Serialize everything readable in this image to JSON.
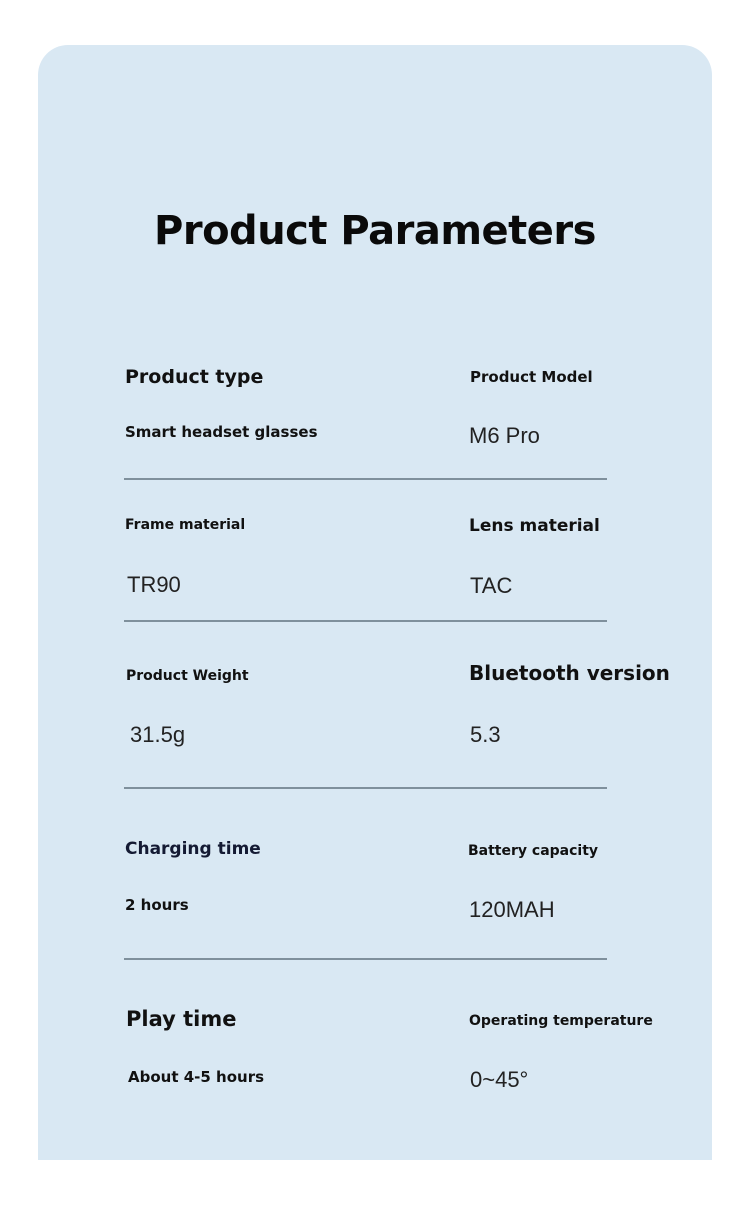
{
  "title": "Product Parameters",
  "params": [
    {
      "label": "Product type",
      "value": "Smart headset glasses"
    },
    {
      "label": "Product Model",
      "value": "M6 Pro"
    },
    {
      "label": "Frame material",
      "value": "TR90"
    },
    {
      "label": "Lens material",
      "value": "TAC"
    },
    {
      "label": "Product Weight",
      "value": "31.5g"
    },
    {
      "label": "Bluetooth version",
      "value": "5.3"
    },
    {
      "label": "Charging time",
      "value": "2 hours"
    },
    {
      "label": "Battery capacity",
      "value": "120MAH"
    },
    {
      "label": "Play time",
      "value": "About 4-5 hours"
    },
    {
      "label": "Operating temperature",
      "value": "0~45°"
    }
  ],
  "colors": {
    "panel": "#d9e8f3",
    "divider": "#7f909c",
    "label_accent": "#141a33"
  }
}
